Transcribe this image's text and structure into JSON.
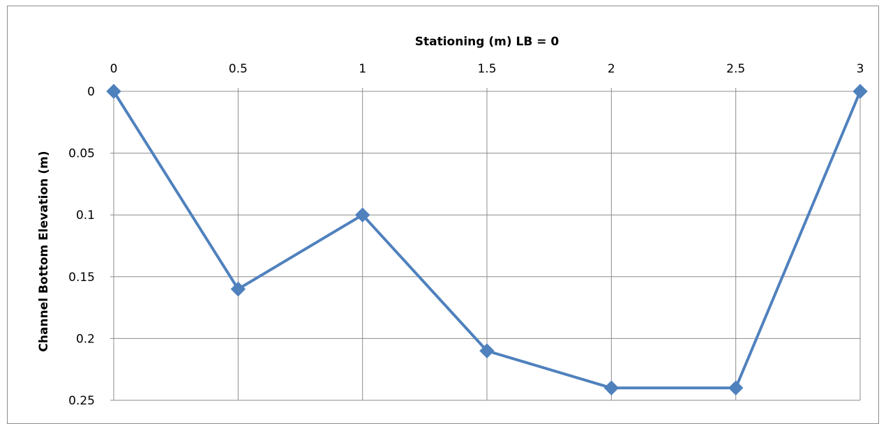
{
  "chart_data": {
    "type": "line",
    "xlabel": "Stationing (m) LB = 0",
    "ylabel": "Channel Bottom Elevation (m)",
    "x_axis_position": "top",
    "y_axis_inverted": true,
    "xlim": [
      0,
      3
    ],
    "ylim": [
      0,
      0.25
    ],
    "x_ticks": [
      "0",
      "0.5",
      "1",
      "1.5",
      "2",
      "2.5",
      "3"
    ],
    "y_ticks": [
      "0",
      "0.05",
      "0.1",
      "0.15",
      "0.2",
      "0.25"
    ],
    "grid": true,
    "series": [
      {
        "color": "#4f81bd",
        "marker": "diamond",
        "x": [
          0,
          0.5,
          1,
          1.5,
          2,
          2.5,
          3
        ],
        "y": [
          0,
          0.16,
          0.1,
          0.21,
          0.24,
          0.24,
          0
        ]
      }
    ]
  }
}
